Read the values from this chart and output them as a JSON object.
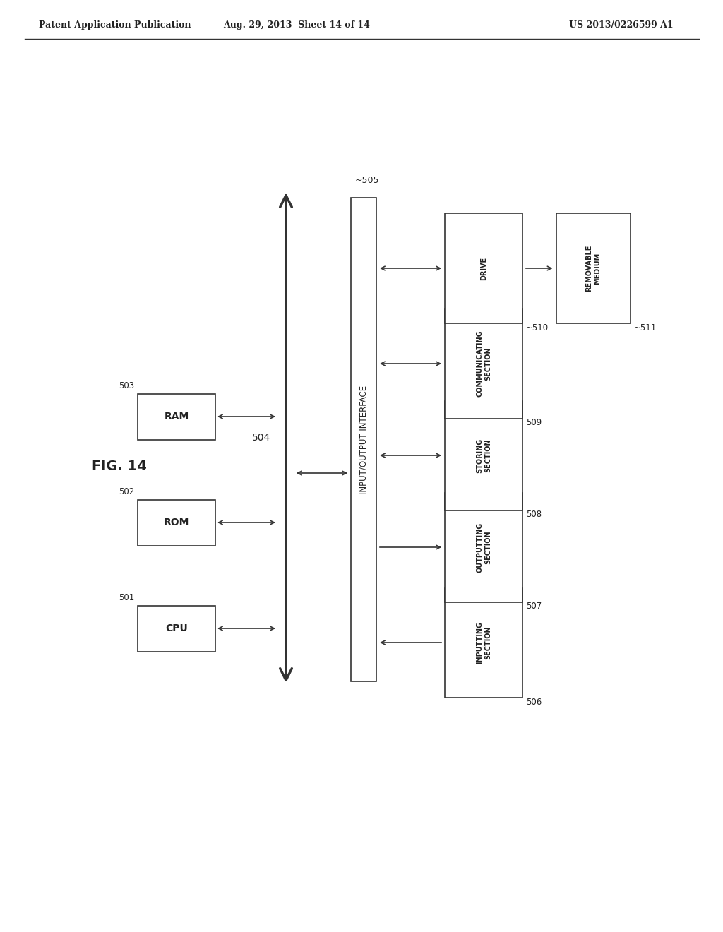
{
  "bg_color": "#ffffff",
  "header_left": "Patent Application Publication",
  "header_mid": "Aug. 29, 2013  Sheet 14 of 14",
  "header_right": "US 2013/0226599 A1",
  "fig_label": "FIG. 14",
  "bus_label": "504",
  "io_label": "INPUT/OUTPUT INTERFACE",
  "io_ref": "~505",
  "boxes_left": [
    {
      "label": "CPU",
      "ref": "501"
    },
    {
      "label": "ROM",
      "ref": "502"
    },
    {
      "label": "RAM",
      "ref": "503"
    }
  ],
  "boxes_right": [
    {
      "label": "INPUTTING\nSECTION",
      "ref": "506"
    },
    {
      "label": "OUTPUTTING\nSECTION",
      "ref": "507"
    },
    {
      "label": "STORING\nSECTION",
      "ref": "508"
    },
    {
      "label": "COMMUNICATING\nSECTION",
      "ref": "509"
    },
    {
      "label": "DRIVE",
      "ref": "~510"
    }
  ],
  "removable_box": {
    "label": "REMOVABLE\nMEDIUM",
    "ref": "~511"
  },
  "line_color": "#333333",
  "text_color": "#222222",
  "box_edge_color": "#333333"
}
